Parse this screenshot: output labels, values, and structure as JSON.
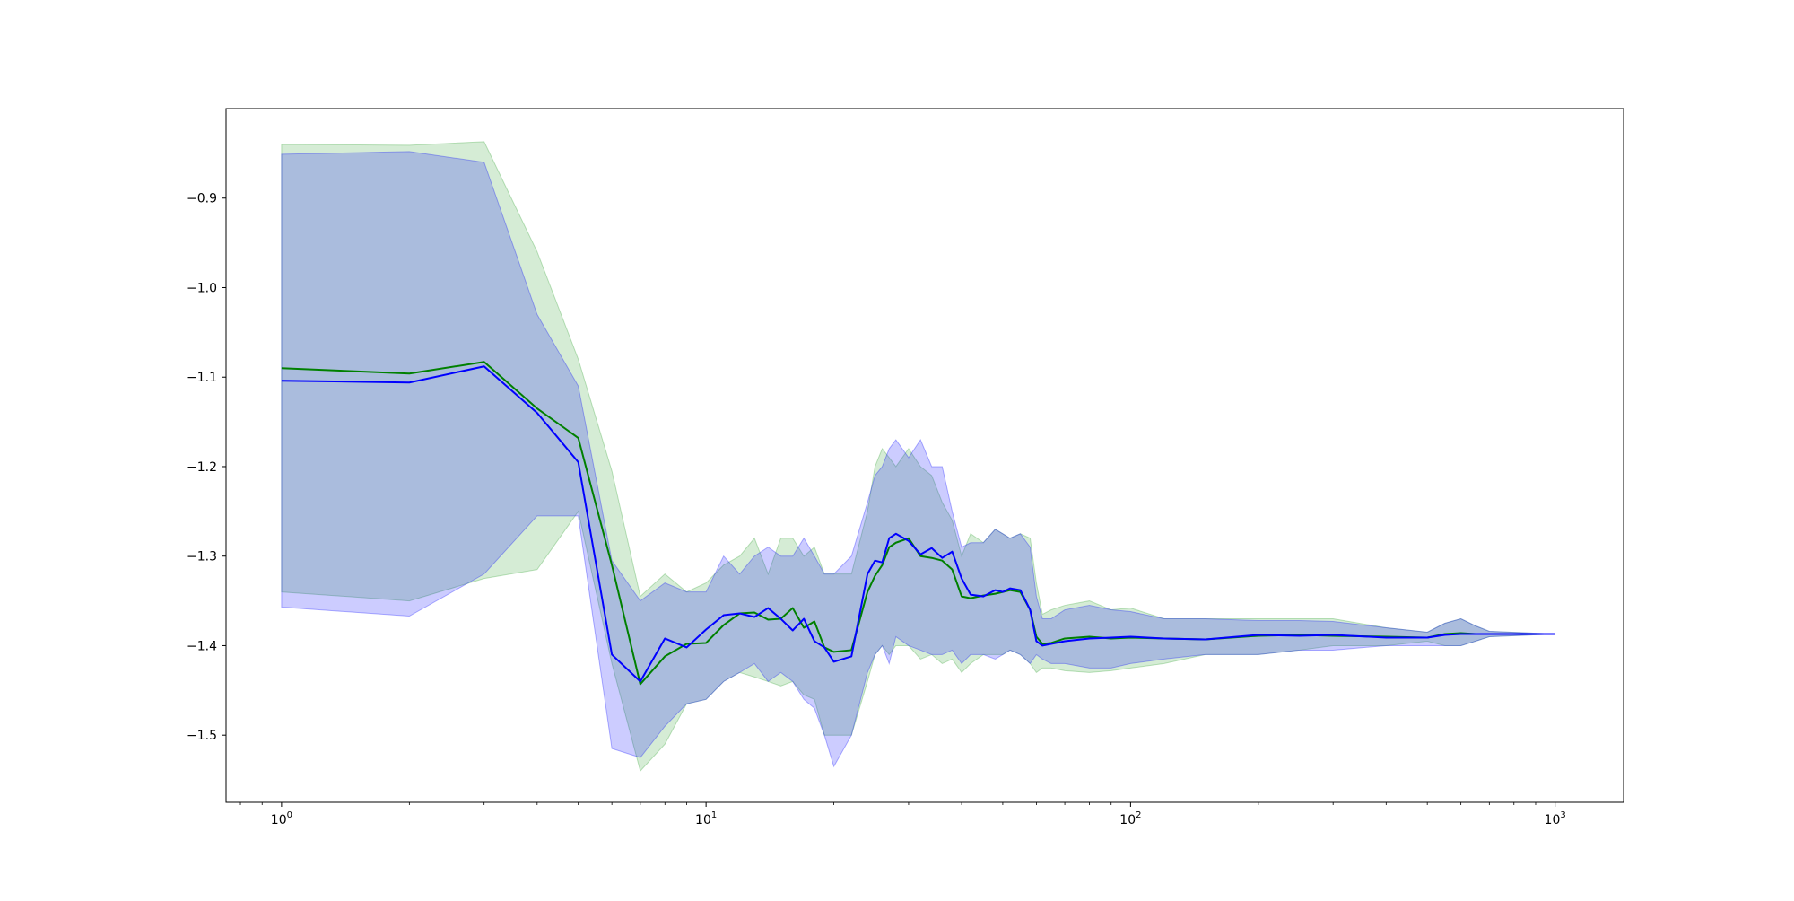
{
  "chart_data": {
    "type": "line",
    "title": "",
    "xlabel": "",
    "ylabel": "",
    "xscale": "log",
    "xlim": [
      0.74,
      1450
    ],
    "ylim": [
      -1.575,
      -0.8
    ],
    "grid": false,
    "legend": null,
    "x_ticks": [
      {
        "value": 1,
        "base": "10",
        "exp": "0"
      },
      {
        "value": 10,
        "base": "10",
        "exp": "1"
      },
      {
        "value": 100,
        "base": "10",
        "exp": "2"
      },
      {
        "value": 1000,
        "base": "10",
        "exp": "3"
      }
    ],
    "y_ticks": [
      {
        "value": -0.9,
        "label": "−0.9"
      },
      {
        "value": -1.0,
        "label": "−1.0"
      },
      {
        "value": -1.1,
        "label": "−1.1"
      },
      {
        "value": -1.2,
        "label": "−1.2"
      },
      {
        "value": -1.3,
        "label": "−1.3"
      },
      {
        "value": -1.4,
        "label": "−1.4"
      },
      {
        "value": -1.5,
        "label": "−1.5"
      }
    ],
    "series": [
      {
        "color": "#008000",
        "band_color": "#2ca02c",
        "x": [
          1,
          2,
          3,
          4,
          5,
          6,
          7,
          8,
          9,
          10,
          11,
          12,
          13,
          14,
          15,
          16,
          17,
          18,
          19,
          20,
          22,
          24,
          25,
          26,
          27,
          28,
          30,
          32,
          34,
          36,
          38,
          40,
          42,
          45,
          48,
          50,
          52,
          55,
          58,
          60,
          62,
          65,
          70,
          80,
          90,
          100,
          120,
          150,
          200,
          250,
          300,
          400,
          500,
          550,
          600,
          650,
          700,
          1000
        ],
        "y": [
          -1.09,
          -1.096,
          -1.083,
          -1.135,
          -1.168,
          -1.31,
          -1.443,
          -1.412,
          -1.398,
          -1.397,
          -1.377,
          -1.364,
          -1.363,
          -1.371,
          -1.37,
          -1.358,
          -1.38,
          -1.373,
          -1.402,
          -1.407,
          -1.405,
          -1.34,
          -1.322,
          -1.31,
          -1.29,
          -1.285,
          -1.28,
          -1.3,
          -1.302,
          -1.305,
          -1.315,
          -1.345,
          -1.347,
          -1.344,
          -1.342,
          -1.34,
          -1.338,
          -1.34,
          -1.36,
          -1.39,
          -1.398,
          -1.397,
          -1.392,
          -1.39,
          -1.392,
          -1.391,
          -1.392,
          -1.393,
          -1.389,
          -1.388,
          -1.389,
          -1.39,
          -1.391,
          -1.387,
          -1.386,
          -1.387,
          -1.387,
          -1.387
        ],
        "upper": [
          -0.84,
          -0.841,
          -0.837,
          -0.96,
          -1.08,
          -1.205,
          -1.345,
          -1.32,
          -1.34,
          -1.33,
          -1.31,
          -1.3,
          -1.28,
          -1.32,
          -1.28,
          -1.28,
          -1.3,
          -1.29,
          -1.32,
          -1.32,
          -1.32,
          -1.25,
          -1.2,
          -1.18,
          -1.19,
          -1.2,
          -1.18,
          -1.2,
          -1.21,
          -1.24,
          -1.26,
          -1.3,
          -1.275,
          -1.285,
          -1.27,
          -1.275,
          -1.28,
          -1.275,
          -1.28,
          -1.33,
          -1.365,
          -1.36,
          -1.355,
          -1.35,
          -1.36,
          -1.358,
          -1.37,
          -1.37,
          -1.37,
          -1.37,
          -1.37,
          -1.38,
          -1.385,
          -1.375,
          -1.37,
          -1.378,
          -1.384,
          -1.387
        ],
        "lower": [
          -1.34,
          -1.35,
          -1.325,
          -1.315,
          -1.25,
          -1.42,
          -1.54,
          -1.51,
          -1.465,
          -1.46,
          -1.44,
          -1.43,
          -1.435,
          -1.44,
          -1.445,
          -1.44,
          -1.455,
          -1.46,
          -1.5,
          -1.5,
          -1.5,
          -1.44,
          -1.41,
          -1.4,
          -1.41,
          -1.4,
          -1.4,
          -1.415,
          -1.41,
          -1.42,
          -1.415,
          -1.43,
          -1.42,
          -1.41,
          -1.41,
          -1.41,
          -1.405,
          -1.41,
          -1.42,
          -1.43,
          -1.425,
          -1.425,
          -1.428,
          -1.43,
          -1.428,
          -1.425,
          -1.42,
          -1.41,
          -1.41,
          -1.405,
          -1.4,
          -1.4,
          -1.395,
          -1.4,
          -1.4,
          -1.395,
          -1.39,
          -1.387
        ]
      },
      {
        "color": "#0000ff",
        "band_color": "#0000ff",
        "x": [
          1,
          2,
          3,
          4,
          5,
          6,
          7,
          8,
          9,
          10,
          11,
          12,
          13,
          14,
          15,
          16,
          17,
          18,
          19,
          20,
          22,
          24,
          25,
          26,
          27,
          28,
          30,
          32,
          34,
          36,
          38,
          40,
          42,
          45,
          48,
          50,
          52,
          55,
          58,
          60,
          62,
          65,
          70,
          80,
          90,
          100,
          120,
          150,
          200,
          250,
          300,
          400,
          500,
          550,
          600,
          650,
          700,
          1000
        ],
        "y": [
          -1.104,
          -1.106,
          -1.088,
          -1.14,
          -1.195,
          -1.41,
          -1.44,
          -1.392,
          -1.402,
          -1.382,
          -1.366,
          -1.364,
          -1.368,
          -1.358,
          -1.37,
          -1.383,
          -1.37,
          -1.395,
          -1.402,
          -1.418,
          -1.412,
          -1.32,
          -1.305,
          -1.307,
          -1.28,
          -1.275,
          -1.283,
          -1.298,
          -1.291,
          -1.302,
          -1.295,
          -1.325,
          -1.343,
          -1.345,
          -1.338,
          -1.34,
          -1.336,
          -1.338,
          -1.36,
          -1.395,
          -1.4,
          -1.398,
          -1.395,
          -1.392,
          -1.391,
          -1.39,
          -1.392,
          -1.393,
          -1.388,
          -1.389,
          -1.388,
          -1.391,
          -1.391,
          -1.388,
          -1.387,
          -1.387,
          -1.387,
          -1.387
        ],
        "upper": [
          -0.851,
          -0.848,
          -0.86,
          -1.03,
          -1.11,
          -1.305,
          -1.35,
          -1.33,
          -1.34,
          -1.34,
          -1.3,
          -1.32,
          -1.3,
          -1.29,
          -1.3,
          -1.3,
          -1.28,
          -1.3,
          -1.32,
          -1.32,
          -1.3,
          -1.24,
          -1.21,
          -1.2,
          -1.18,
          -1.17,
          -1.19,
          -1.17,
          -1.2,
          -1.2,
          -1.25,
          -1.29,
          -1.285,
          -1.285,
          -1.27,
          -1.275,
          -1.28,
          -1.275,
          -1.29,
          -1.345,
          -1.37,
          -1.37,
          -1.36,
          -1.355,
          -1.36,
          -1.362,
          -1.37,
          -1.37,
          -1.372,
          -1.372,
          -1.373,
          -1.38,
          -1.385,
          -1.375,
          -1.37,
          -1.378,
          -1.384,
          -1.387
        ],
        "lower": [
          -1.357,
          -1.367,
          -1.32,
          -1.255,
          -1.255,
          -1.515,
          -1.525,
          -1.49,
          -1.465,
          -1.46,
          -1.44,
          -1.43,
          -1.42,
          -1.44,
          -1.43,
          -1.44,
          -1.46,
          -1.47,
          -1.5,
          -1.535,
          -1.5,
          -1.43,
          -1.41,
          -1.4,
          -1.42,
          -1.39,
          -1.4,
          -1.405,
          -1.41,
          -1.41,
          -1.405,
          -1.42,
          -1.41,
          -1.41,
          -1.415,
          -1.41,
          -1.405,
          -1.41,
          -1.42,
          -1.41,
          -1.415,
          -1.42,
          -1.42,
          -1.425,
          -1.425,
          -1.42,
          -1.415,
          -1.41,
          -1.41,
          -1.405,
          -1.405,
          -1.4,
          -1.4,
          -1.4,
          -1.4,
          -1.395,
          -1.39,
          -1.387
        ]
      }
    ]
  }
}
